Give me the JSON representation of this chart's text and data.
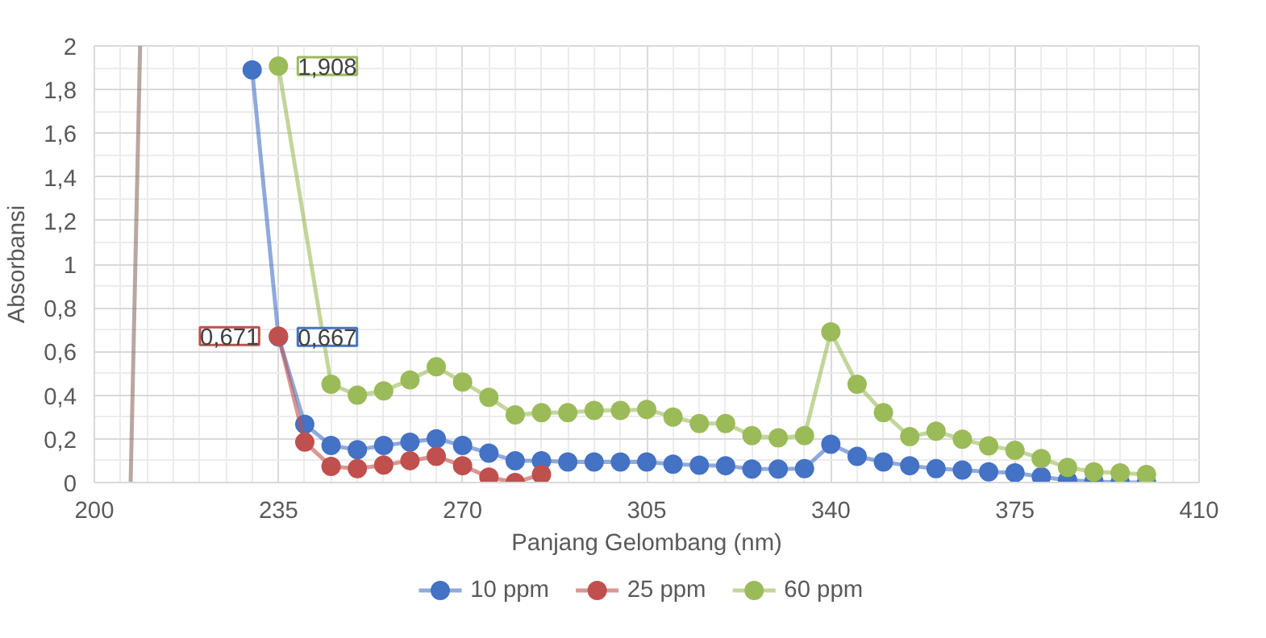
{
  "chart_data": {
    "type": "line",
    "xlabel": "Panjang Gelombang (nm)",
    "ylabel": "Absorbansi",
    "xlim": [
      200,
      410
    ],
    "xticks": [
      200,
      235,
      270,
      305,
      340,
      375,
      410
    ],
    "ylim": [
      0,
      2
    ],
    "yticks": [
      0,
      {
        "value": 0.2,
        "label": "0,2"
      },
      {
        "value": 0.4,
        "label": "0,4"
      },
      {
        "value": 0.6,
        "label": "0,6"
      },
      {
        "value": 0.8,
        "label": "0,8"
      },
      1,
      {
        "value": 1.2,
        "label": "1,2"
      },
      {
        "value": 1.4,
        "label": "1,4"
      },
      {
        "value": 1.6,
        "label": "1,6"
      },
      {
        "value": 1.8,
        "label": "1,8"
      },
      2
    ],
    "grid": true,
    "legend": "bottom",
    "marker": "circle",
    "line_style": "solid",
    "series": [
      {
        "name": "10 ppm",
        "color": "#4472c4",
        "x": [
          230,
          235,
          240,
          245,
          250,
          255,
          260,
          265,
          270,
          275,
          280,
          285,
          290,
          295,
          300,
          305,
          310,
          315,
          320,
          325,
          330,
          335,
          340,
          345,
          350,
          355,
          360,
          365,
          370,
          375,
          380,
          385,
          390,
          395,
          400
        ],
        "values": [
          1.89,
          0.667,
          0.267,
          0.17,
          0.15,
          0.17,
          0.185,
          0.2,
          0.17,
          0.135,
          0.1,
          0.1,
          0.094,
          0.094,
          0.094,
          0.094,
          0.084,
          0.079,
          0.077,
          0.062,
          0.062,
          0.064,
          0.175,
          0.12,
          0.094,
          0.077,
          0.064,
          0.057,
          0.049,
          0.044,
          0.027,
          0.01,
          0.005,
          0,
          0
        ],
        "value_labels": [
          null,
          "0,667",
          null,
          null,
          null,
          null,
          null,
          null,
          null,
          null,
          null,
          null,
          null,
          null,
          null,
          null,
          null,
          null,
          null,
          null,
          null,
          null,
          null,
          null,
          null,
          null,
          null,
          null,
          null,
          null,
          null,
          null,
          null,
          null,
          null
        ]
      },
      {
        "name": "25 ppm",
        "color": "#c0504d",
        "x": [
          235,
          240,
          245,
          250,
          255,
          260,
          265,
          270,
          275,
          280,
          285
        ],
        "values": [
          0.671,
          0.185,
          0.074,
          0.064,
          0.08,
          0.1,
          0.12,
          0.077,
          0.025,
          0,
          0.037
        ],
        "value_labels": [
          "0,671",
          null,
          null,
          null,
          null,
          null,
          null,
          null,
          null,
          null,
          null
        ]
      },
      {
        "name": "60 ppm",
        "color": "#9bbb59",
        "x": [
          235,
          245,
          250,
          255,
          260,
          265,
          270,
          275,
          280,
          285,
          290,
          295,
          300,
          305,
          310,
          315,
          320,
          325,
          330,
          335,
          340,
          345,
          350,
          355,
          360,
          365,
          370,
          375,
          380,
          385,
          390,
          395,
          400
        ],
        "values": [
          1.908,
          0.45,
          0.4,
          0.42,
          0.47,
          0.53,
          0.46,
          0.39,
          0.31,
          0.32,
          0.32,
          0.33,
          0.33,
          0.335,
          0.3,
          0.27,
          0.27,
          0.215,
          0.205,
          0.215,
          0.69,
          0.45,
          0.32,
          0.21,
          0.235,
          0.198,
          0.168,
          0.148,
          0.11,
          0.069,
          0.049,
          0.044,
          0.037
        ],
        "value_labels": [
          "1,908",
          null,
          null,
          null,
          null,
          null,
          null,
          null,
          null,
          null,
          null,
          null,
          null,
          null,
          null,
          null,
          null,
          null,
          null,
          null,
          null,
          null,
          null,
          null,
          null,
          null,
          null,
          null,
          null,
          null,
          null,
          null,
          null
        ]
      },
      {
        "color": "#8c6d62",
        "x": [
          206.9,
          208.7
        ],
        "values": [
          0,
          2
        ],
        "marker": "none"
      }
    ]
  }
}
